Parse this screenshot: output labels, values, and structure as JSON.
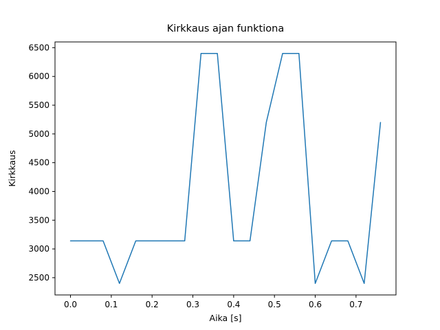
{
  "chart_data": {
    "type": "line",
    "title": "Kirkkaus ajan funktiona",
    "xlabel": "Aika [s]",
    "ylabel": "Kirkkaus",
    "x": [
      0.0,
      0.04,
      0.08,
      0.12,
      0.16,
      0.2,
      0.24,
      0.28,
      0.32,
      0.36,
      0.4,
      0.44,
      0.48,
      0.52,
      0.56,
      0.6,
      0.64,
      0.68,
      0.72,
      0.76
    ],
    "y": [
      3140,
      3140,
      3140,
      2400,
      3140,
      3140,
      3140,
      3140,
      6400,
      6400,
      3140,
      3140,
      5200,
      6400,
      6400,
      2400,
      3140,
      3140,
      2400,
      5200
    ],
    "xlim": [
      -0.038,
      0.798
    ],
    "ylim": [
      2200,
      6600
    ],
    "xticks": [
      0.0,
      0.1,
      0.2,
      0.3,
      0.4,
      0.5,
      0.6,
      0.7
    ],
    "yticks": [
      2500,
      3000,
      3500,
      4000,
      4500,
      5000,
      5500,
      6000,
      6500
    ],
    "line_color": "#1f77b4",
    "axis_color": "#000000",
    "background_color": "#ffffff",
    "grid": false,
    "legend": null
  }
}
